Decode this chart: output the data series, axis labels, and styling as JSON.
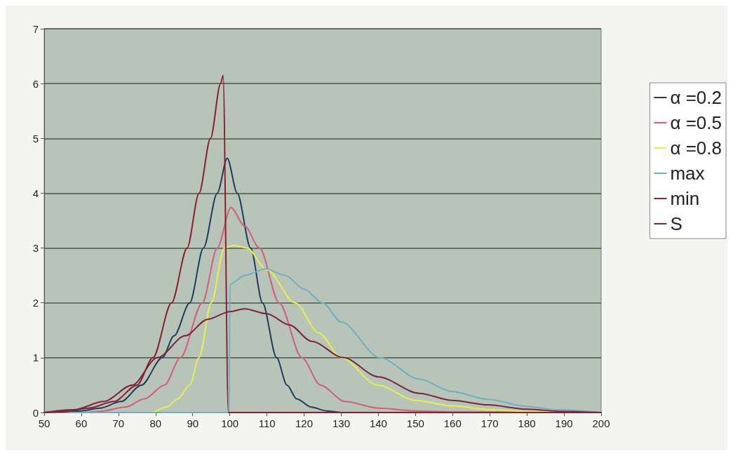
{
  "chart_data": {
    "type": "line",
    "xlim": [
      50,
      200
    ],
    "xticks": [
      50,
      60,
      70,
      80,
      90,
      100,
      110,
      120,
      130,
      140,
      150,
      160,
      170,
      180,
      190,
      200
    ],
    "ylim": [
      0,
      7
    ],
    "yticks": [
      0,
      1,
      2,
      3,
      4,
      5,
      6,
      7
    ],
    "grid": "y",
    "legend": "right",
    "marker": "none",
    "line_style": "solid",
    "series": [
      {
        "name": "α =0.2",
        "color": "#1f3d5c",
        "x": [
          50,
          60,
          65,
          70.7,
          76.2,
          81.8,
          85,
          89.2,
          92.9,
          96.6,
          99.3,
          102,
          105.6,
          108.8,
          112.6,
          115.4,
          118,
          121.9,
          126,
          130,
          140,
          200
        ],
        "values": [
          0,
          0.03,
          0.08,
          0.2,
          0.5,
          1,
          1.4,
          2,
          3,
          4,
          4.64,
          4,
          3,
          2,
          1,
          0.5,
          0.25,
          0.1,
          0.03,
          0,
          0,
          0
        ]
      },
      {
        "name": "α =0.5",
        "color": "#d0607a",
        "x": [
          50,
          60,
          65,
          71.9,
          77,
          82.4,
          86.7,
          92.6,
          96.6,
          100.3,
          104,
          108,
          113.3,
          119.4,
          124.4,
          131,
          140,
          150,
          160,
          200
        ],
        "values": [
          0,
          0,
          0.02,
          0.1,
          0.25,
          0.5,
          1,
          2,
          3,
          3.74,
          3.4,
          3,
          2,
          1,
          0.5,
          0.2,
          0.08,
          0.03,
          0.01,
          0
        ]
      },
      {
        "name": "α =0.8",
        "color": "#e8ee50",
        "x": [
          50,
          78.7,
          83,
          86,
          89.2,
          91.7,
          95,
          98.5,
          100.9,
          104.6,
          110,
          117.6,
          124,
          130,
          139.8,
          150,
          160,
          170,
          180,
          190,
          200
        ],
        "values": [
          0,
          0,
          0.1,
          0.25,
          0.5,
          1,
          2,
          3,
          3.05,
          3,
          2.6,
          2,
          1.45,
          1,
          0.5,
          0.22,
          0.12,
          0.05,
          0.02,
          0,
          0
        ]
      },
      {
        "name": "max",
        "color": "#6fb0c0",
        "x": [
          50,
          99.8,
          100,
          104,
          109.6,
          115,
          120,
          125,
          130,
          140.4,
          151,
          160,
          169.4,
          180,
          188,
          200
        ],
        "values": [
          0,
          0,
          2.34,
          2.5,
          2.62,
          2.5,
          2.25,
          2,
          1.65,
          1,
          0.61,
          0.38,
          0.24,
          0.11,
          0.05,
          0
        ]
      },
      {
        "name": "min",
        "color": "#8b2030",
        "x": [
          50,
          55,
          62,
          68.8,
          75,
          79.3,
          84.3,
          88.5,
          91.7,
          94.8,
          97.5,
          98.2,
          99.6,
          100,
          200
        ],
        "values": [
          0,
          0.01,
          0.08,
          0.2,
          0.5,
          1,
          2,
          3,
          4,
          5,
          6,
          6.15,
          0,
          0,
          0
        ]
      },
      {
        "name": "S",
        "color": "#7a2540",
        "x": [
          50,
          58,
          66,
          73.7,
          80.5,
          88,
          94,
          100,
          104,
          110,
          116,
          122,
          130.6,
          140,
          151,
          160,
          169.4,
          180,
          190,
          200
        ],
        "values": [
          0,
          0.05,
          0.2,
          0.5,
          1,
          1.4,
          1.7,
          1.84,
          1.89,
          1.8,
          1.6,
          1.3,
          1,
          0.65,
          0.35,
          0.22,
          0.14,
          0.06,
          0.02,
          0
        ]
      }
    ]
  }
}
